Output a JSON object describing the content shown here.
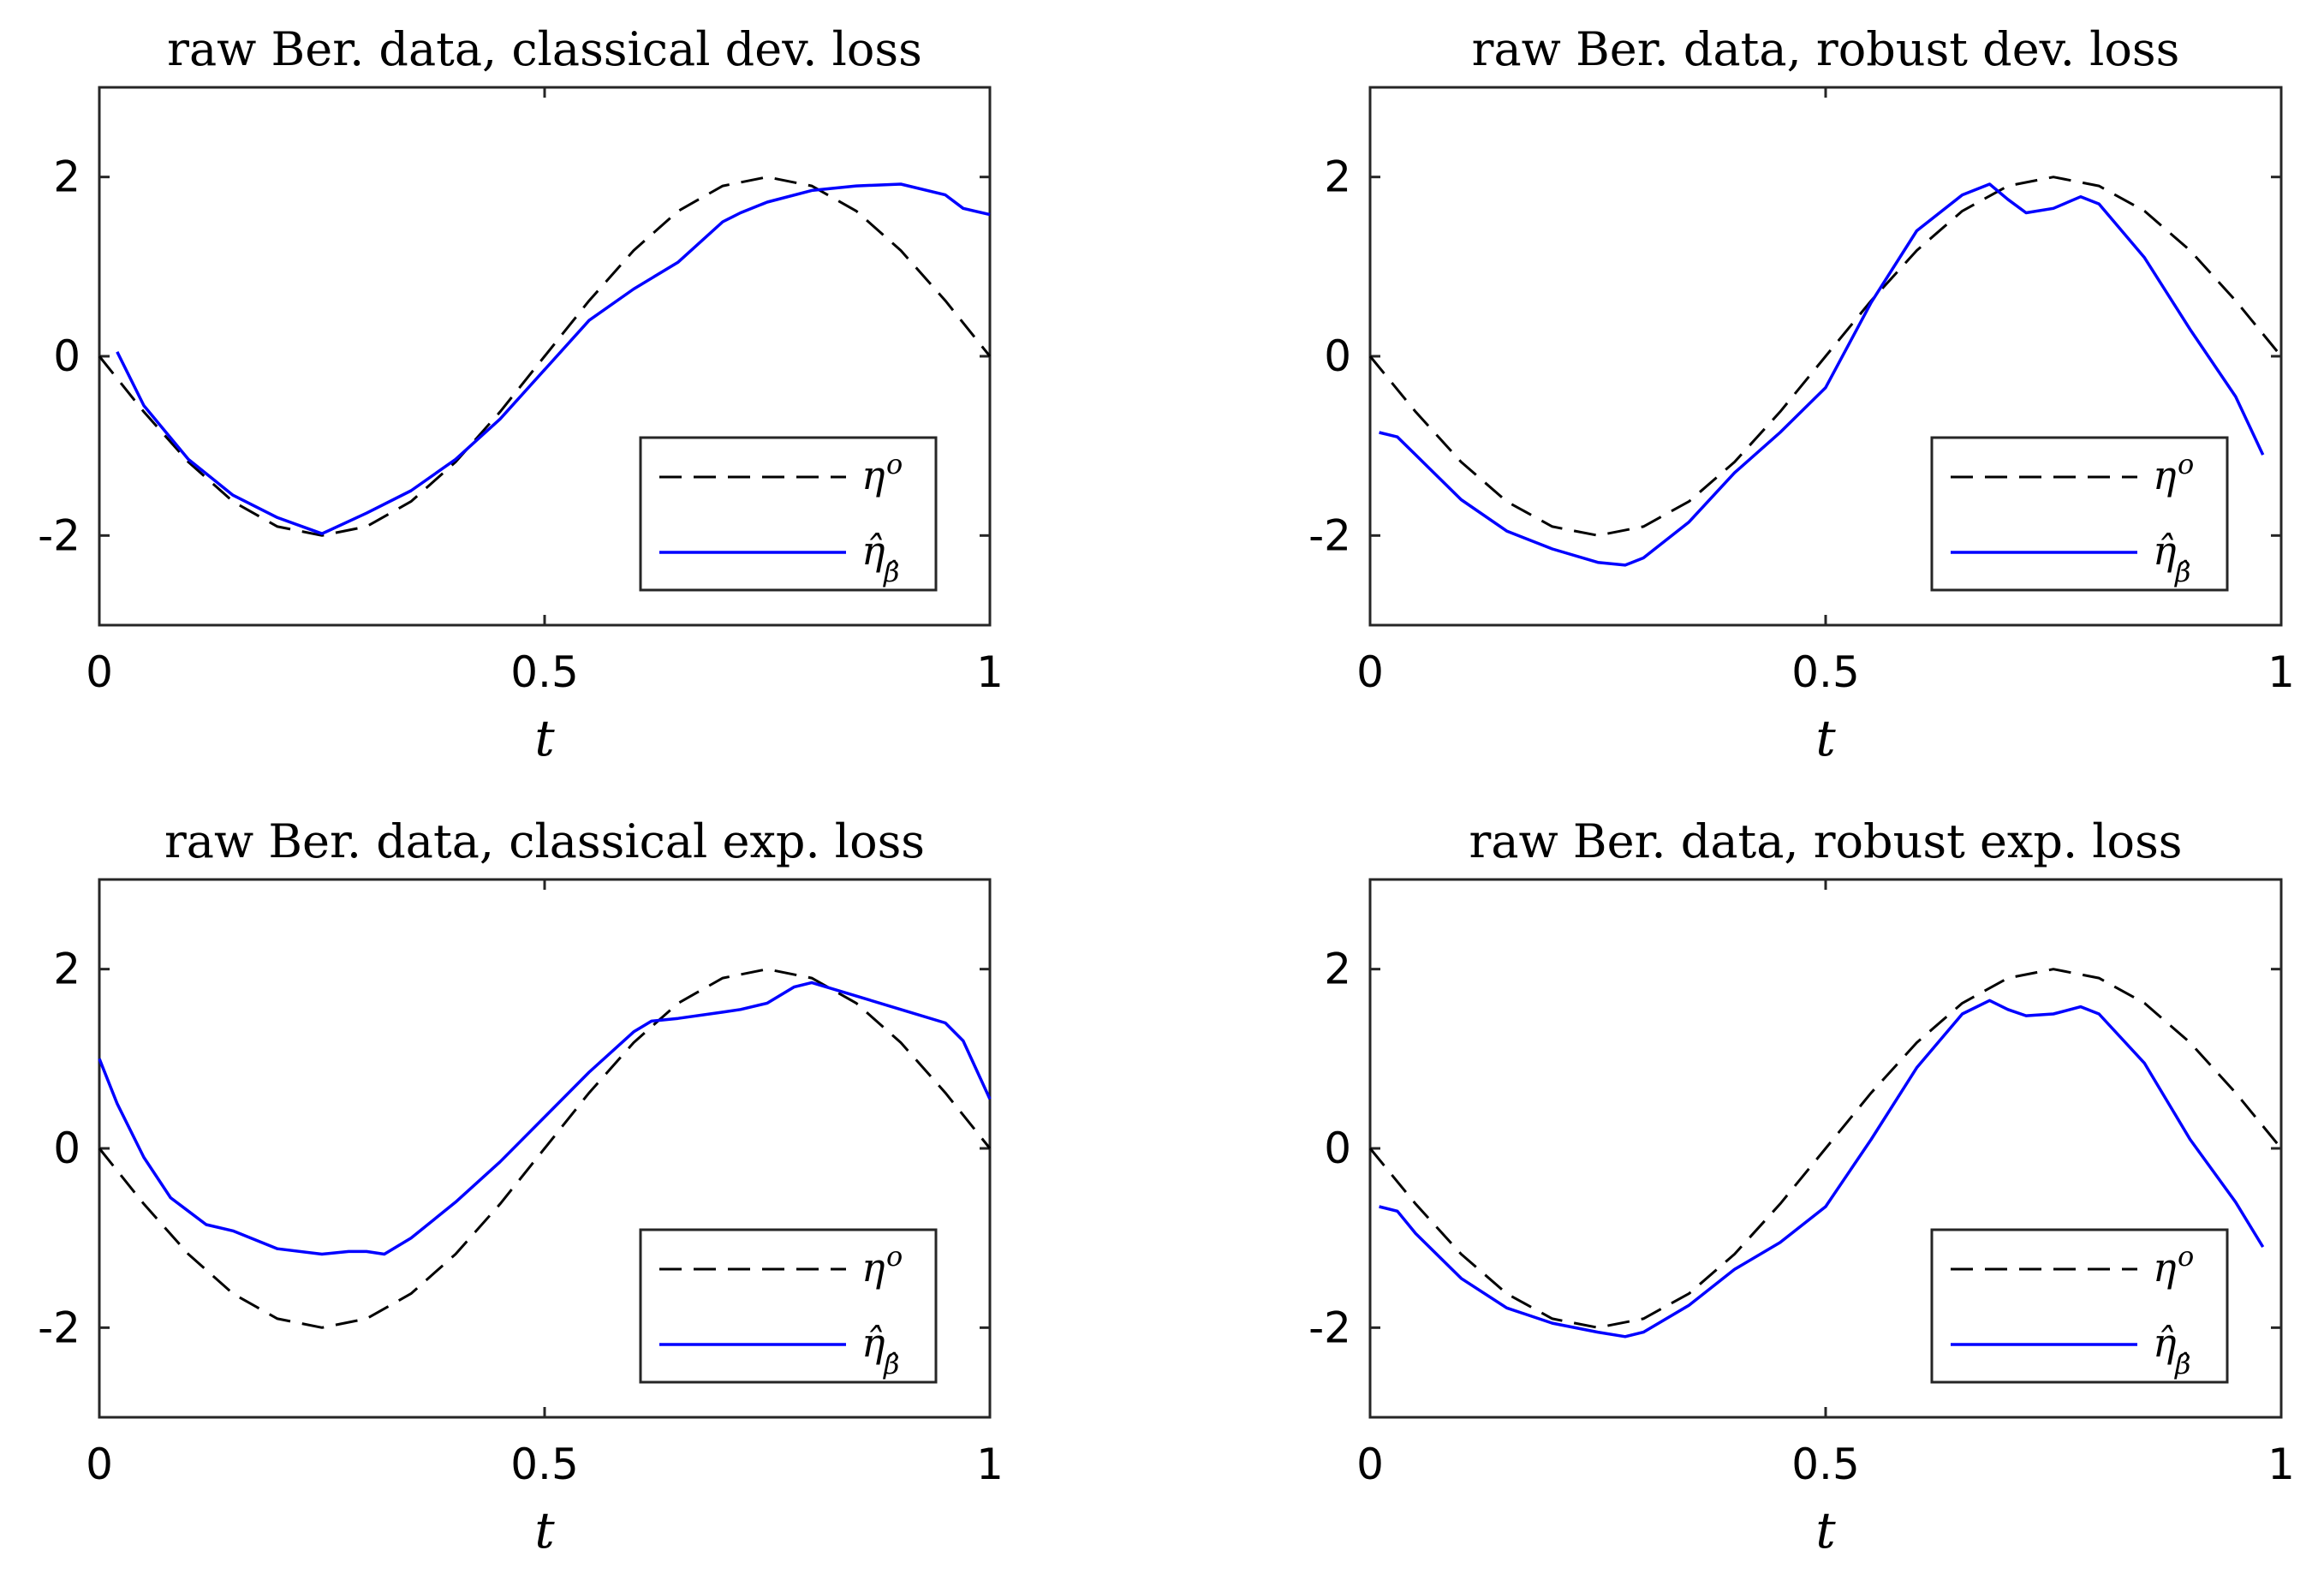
{
  "chart_data": [
    {
      "type": "line",
      "title": "raw Ber. data, classical dev. loss",
      "xlabel": "t",
      "ylabel": "",
      "xlim": [
        0,
        1
      ],
      "ylim": [
        -3,
        3
      ],
      "xticks": [
        0,
        0.5,
        1
      ],
      "xtick_labels": [
        "0",
        "0.5",
        "1"
      ],
      "yticks": [
        -2,
        0,
        2
      ],
      "ytick_labels": [
        "-2",
        "0",
        "2"
      ],
      "grid": false,
      "legend_position": "bottom-right",
      "series": [
        {
          "name": "η°",
          "legend_main": "η",
          "legend_sup": "o",
          "color": "#000000",
          "style": "dashed",
          "x": [
            0,
            0.05,
            0.1,
            0.15,
            0.2,
            0.25,
            0.3,
            0.35,
            0.4,
            0.45,
            0.5,
            0.55,
            0.6,
            0.65,
            0.7,
            0.75,
            0.8,
            0.85,
            0.9,
            0.95,
            1.0
          ],
          "y": [
            0,
            -0.62,
            -1.18,
            -1.62,
            -1.9,
            -2.0,
            -1.9,
            -1.62,
            -1.18,
            -0.62,
            0,
            0.62,
            1.18,
            1.62,
            1.9,
            2.0,
            1.9,
            1.62,
            1.18,
            0.62,
            0
          ]
        },
        {
          "name": "η̂β̂",
          "legend_main": "η̂",
          "legend_sub": "β̂",
          "color": "#0000ff",
          "style": "solid",
          "x": [
            0.02,
            0.05,
            0.1,
            0.15,
            0.2,
            0.25,
            0.3,
            0.35,
            0.4,
            0.45,
            0.5,
            0.55,
            0.6,
            0.65,
            0.7,
            0.72,
            0.75,
            0.8,
            0.85,
            0.9,
            0.95,
            0.97,
            1.0
          ],
          "y": [
            0.05,
            -0.55,
            -1.15,
            -1.55,
            -1.8,
            -1.98,
            -1.75,
            -1.5,
            -1.15,
            -0.7,
            -0.15,
            0.4,
            0.75,
            1.05,
            1.5,
            1.6,
            1.72,
            1.85,
            1.9,
            1.92,
            1.8,
            1.65,
            1.58
          ]
        }
      ]
    },
    {
      "type": "line",
      "title": "raw Ber. data, robust dev. loss",
      "xlabel": "t",
      "ylabel": "",
      "xlim": [
        0,
        1
      ],
      "ylim": [
        -3,
        3
      ],
      "xticks": [
        0,
        0.5,
        1
      ],
      "xtick_labels": [
        "0",
        "0.5",
        "1"
      ],
      "yticks": [
        -2,
        0,
        2
      ],
      "ytick_labels": [
        "-2",
        "0",
        "2"
      ],
      "grid": false,
      "legend_position": "bottom-right",
      "series": [
        {
          "name": "η°",
          "legend_main": "η",
          "legend_sup": "o",
          "color": "#000000",
          "style": "dashed",
          "x": [
            0,
            0.05,
            0.1,
            0.15,
            0.2,
            0.25,
            0.3,
            0.35,
            0.4,
            0.45,
            0.5,
            0.55,
            0.6,
            0.65,
            0.7,
            0.75,
            0.8,
            0.85,
            0.9,
            0.95,
            1.0
          ],
          "y": [
            0,
            -0.62,
            -1.18,
            -1.62,
            -1.9,
            -2.0,
            -1.9,
            -1.62,
            -1.18,
            -0.62,
            0,
            0.62,
            1.18,
            1.62,
            1.9,
            2.0,
            1.9,
            1.62,
            1.18,
            0.62,
            0
          ]
        },
        {
          "name": "η̂β̂",
          "legend_main": "η̂",
          "legend_sub": "β̂",
          "color": "#0000ff",
          "style": "solid",
          "x": [
            0.01,
            0.03,
            0.05,
            0.1,
            0.15,
            0.2,
            0.25,
            0.28,
            0.3,
            0.35,
            0.4,
            0.45,
            0.5,
            0.55,
            0.6,
            0.65,
            0.68,
            0.7,
            0.72,
            0.75,
            0.78,
            0.8,
            0.85,
            0.9,
            0.95,
            0.98
          ],
          "y": [
            -0.85,
            -0.9,
            -1.1,
            -1.6,
            -1.95,
            -2.15,
            -2.3,
            -2.33,
            -2.25,
            -1.85,
            -1.3,
            -0.85,
            -0.35,
            0.6,
            1.4,
            1.8,
            1.92,
            1.75,
            1.6,
            1.65,
            1.78,
            1.7,
            1.1,
            0.3,
            -0.45,
            -1.1
          ]
        }
      ]
    },
    {
      "type": "line",
      "title": "raw Ber. data, classical exp. loss",
      "xlabel": "t",
      "ylabel": "",
      "xlim": [
        0,
        1
      ],
      "ylim": [
        -3,
        3
      ],
      "xticks": [
        0,
        0.5,
        1
      ],
      "xtick_labels": [
        "0",
        "0.5",
        "1"
      ],
      "yticks": [
        -2,
        0,
        2
      ],
      "ytick_labels": [
        "-2",
        "0",
        "2"
      ],
      "grid": false,
      "legend_position": "bottom-right",
      "series": [
        {
          "name": "η°",
          "legend_main": "η",
          "legend_sup": "o",
          "color": "#000000",
          "style": "dashed",
          "x": [
            0,
            0.05,
            0.1,
            0.15,
            0.2,
            0.25,
            0.3,
            0.35,
            0.4,
            0.45,
            0.5,
            0.55,
            0.6,
            0.65,
            0.7,
            0.75,
            0.8,
            0.85,
            0.9,
            0.95,
            1.0
          ],
          "y": [
            0,
            -0.62,
            -1.18,
            -1.62,
            -1.9,
            -2.0,
            -1.9,
            -1.62,
            -1.18,
            -0.62,
            0,
            0.62,
            1.18,
            1.62,
            1.9,
            2.0,
            1.9,
            1.62,
            1.18,
            0.62,
            0
          ]
        },
        {
          "name": "η̂β̂",
          "legend_main": "η̂",
          "legend_sub": "β̂",
          "color": "#0000ff",
          "style": "solid",
          "x": [
            0,
            0.02,
            0.05,
            0.08,
            0.1,
            0.12,
            0.15,
            0.2,
            0.25,
            0.28,
            0.3,
            0.32,
            0.35,
            0.4,
            0.45,
            0.5,
            0.55,
            0.6,
            0.62,
            0.65,
            0.7,
            0.72,
            0.75,
            0.78,
            0.8,
            0.85,
            0.9,
            0.95,
            0.97,
            1.0
          ],
          "y": [
            1.0,
            0.5,
            -0.1,
            -0.55,
            -0.7,
            -0.85,
            -0.92,
            -1.12,
            -1.18,
            -1.15,
            -1.15,
            -1.18,
            -1.0,
            -0.6,
            -0.15,
            0.35,
            0.85,
            1.3,
            1.42,
            1.45,
            1.52,
            1.55,
            1.62,
            1.8,
            1.85,
            1.7,
            1.55,
            1.4,
            1.2,
            0.55
          ]
        }
      ]
    },
    {
      "type": "line",
      "title": "raw Ber. data, robust exp. loss",
      "xlabel": "t",
      "ylabel": "",
      "xlim": [
        0,
        1
      ],
      "ylim": [
        -3,
        3
      ],
      "xticks": [
        0,
        0.5,
        1
      ],
      "xtick_labels": [
        "0",
        "0.5",
        "1"
      ],
      "yticks": [
        -2,
        0,
        2
      ],
      "ytick_labels": [
        "-2",
        "0",
        "2"
      ],
      "grid": false,
      "legend_position": "bottom-right",
      "series": [
        {
          "name": "η°",
          "legend_main": "η",
          "legend_sup": "o",
          "color": "#000000",
          "style": "dashed",
          "x": [
            0,
            0.05,
            0.1,
            0.15,
            0.2,
            0.25,
            0.3,
            0.35,
            0.4,
            0.45,
            0.5,
            0.55,
            0.6,
            0.65,
            0.7,
            0.75,
            0.8,
            0.85,
            0.9,
            0.95,
            1.0
          ],
          "y": [
            0,
            -0.62,
            -1.18,
            -1.62,
            -1.9,
            -2.0,
            -1.9,
            -1.62,
            -1.18,
            -0.62,
            0,
            0.62,
            1.18,
            1.62,
            1.9,
            2.0,
            1.9,
            1.62,
            1.18,
            0.62,
            0
          ]
        },
        {
          "name": "η̂β̂",
          "legend_main": "η̂",
          "legend_sub": "β̂",
          "color": "#0000ff",
          "style": "solid",
          "x": [
            0.01,
            0.03,
            0.05,
            0.1,
            0.15,
            0.2,
            0.25,
            0.28,
            0.3,
            0.35,
            0.4,
            0.45,
            0.5,
            0.55,
            0.6,
            0.65,
            0.68,
            0.7,
            0.72,
            0.75,
            0.78,
            0.8,
            0.85,
            0.9,
            0.95,
            0.98
          ],
          "y": [
            -0.65,
            -0.7,
            -0.95,
            -1.45,
            -1.78,
            -1.95,
            -2.05,
            -2.1,
            -2.05,
            -1.75,
            -1.35,
            -1.05,
            -0.65,
            0.1,
            0.9,
            1.5,
            1.65,
            1.55,
            1.48,
            1.5,
            1.58,
            1.5,
            0.95,
            0.1,
            -0.6,
            -1.1
          ]
        }
      ]
    }
  ]
}
